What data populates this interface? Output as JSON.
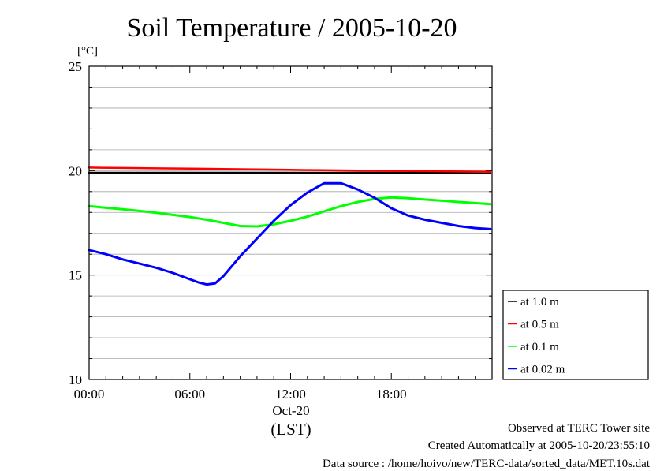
{
  "chart_data": {
    "type": "line",
    "title": "Soil Temperature / 2005-10-20",
    "y_unit": "[°C]",
    "xlabel_date": "Oct-20",
    "xlabel_zone": "(LST)",
    "xlim": [
      0,
      24
    ],
    "ylim": [
      10,
      25
    ],
    "x_ticks": [
      {
        "value": 0,
        "label": "00:00"
      },
      {
        "value": 6,
        "label": "06:00"
      },
      {
        "value": 12,
        "label": "12:00"
      },
      {
        "value": 18,
        "label": "18:00"
      }
    ],
    "y_ticks": [
      {
        "value": 10,
        "label": "10"
      },
      {
        "value": 15,
        "label": "15"
      },
      {
        "value": 20,
        "label": "20"
      },
      {
        "value": 25,
        "label": "25"
      }
    ],
    "grid": true,
    "legend_position": "right",
    "series": [
      {
        "name": "at 1.0 m",
        "color": "#000000",
        "x": [
          0,
          2,
          4,
          6,
          8,
          10,
          12,
          14,
          16,
          18,
          20,
          22,
          23.9
        ],
        "y": [
          19.9,
          19.9,
          19.9,
          19.9,
          19.9,
          19.9,
          19.9,
          19.9,
          19.9,
          19.9,
          19.9,
          19.9,
          19.9
        ]
      },
      {
        "name": "at 0.5 m",
        "color": "#ff0000",
        "x": [
          0,
          2,
          4,
          6,
          8,
          10,
          12,
          14,
          16,
          18,
          20,
          22,
          23.9
        ],
        "y": [
          20.15,
          20.13,
          20.11,
          20.1,
          20.08,
          20.06,
          20.04,
          20.02,
          20.0,
          19.99,
          19.98,
          19.96,
          19.94
        ]
      },
      {
        "name": "at 0.1 m",
        "color": "#00ff00",
        "x": [
          0,
          1,
          2,
          3,
          4,
          5,
          6,
          7,
          8,
          9,
          10,
          11,
          12,
          13,
          14,
          15,
          16,
          17,
          18,
          19,
          20,
          21,
          22,
          23,
          23.9
        ],
        "y": [
          18.3,
          18.22,
          18.15,
          18.07,
          17.98,
          17.88,
          17.78,
          17.65,
          17.5,
          17.35,
          17.33,
          17.43,
          17.6,
          17.8,
          18.05,
          18.3,
          18.5,
          18.65,
          18.72,
          18.68,
          18.62,
          18.56,
          18.5,
          18.45,
          18.4
        ]
      },
      {
        "name": "at 0.02 m",
        "color": "#0000ff",
        "x": [
          0,
          1,
          2,
          3,
          4,
          5,
          6,
          6.5,
          7,
          7.5,
          8,
          9,
          10,
          11,
          12,
          13,
          14,
          15,
          16,
          17,
          18,
          19,
          20,
          21,
          22,
          23,
          23.9
        ],
        "y": [
          16.2,
          16.0,
          15.75,
          15.55,
          15.35,
          15.1,
          14.8,
          14.65,
          14.55,
          14.6,
          14.95,
          15.9,
          16.75,
          17.6,
          18.35,
          18.95,
          19.4,
          19.4,
          19.1,
          18.7,
          18.2,
          17.85,
          17.65,
          17.5,
          17.35,
          17.25,
          17.2
        ]
      }
    ]
  },
  "footer": {
    "line1": "Observed at TERC Tower site",
    "line2": "Created Automatically at 2005-10-20/23:55:10",
    "line3": "Data source : /home/hoivo/new/TERC-data/sorted_data/MET.10s.dat"
  }
}
